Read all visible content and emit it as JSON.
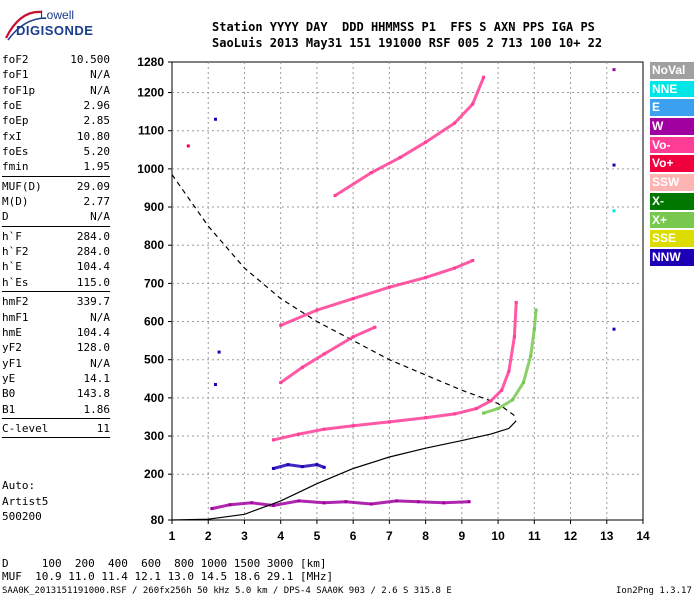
{
  "logo": {
    "line1": "Lowell",
    "line2": "DIGISONDE"
  },
  "header": {
    "line1": "Station YYYY DAY  DDD HHMMSS P1  FFS S AXN PPS IGA PS",
    "line2": "SaoLuis 2013 May31 151 191000 RSF 005 2 713 100 10+ 22"
  },
  "parameters": {
    "group1": [
      {
        "name": "foF2",
        "value": "10.500"
      },
      {
        "name": "foF1",
        "value": "N/A"
      },
      {
        "name": "foF1p",
        "value": "N/A"
      },
      {
        "name": "foE",
        "value": "2.96"
      },
      {
        "name": "foEp",
        "value": "2.85"
      },
      {
        "name": "fxI",
        "value": "10.80"
      },
      {
        "name": "foEs",
        "value": "5.20"
      },
      {
        "name": "fmin",
        "value": "1.95"
      }
    ],
    "group2": [
      {
        "name": "MUF(D)",
        "value": "29.09"
      },
      {
        "name": "M(D)",
        "value": "2.77"
      },
      {
        "name": "D",
        "value": "N/A"
      }
    ],
    "group3": [
      {
        "name": "h`F",
        "value": "284.0"
      },
      {
        "name": "h`F2",
        "value": "284.0"
      },
      {
        "name": "h`E",
        "value": "104.4"
      },
      {
        "name": "h`Es",
        "value": "115.0"
      }
    ],
    "group4": [
      {
        "name": "hmF2",
        "value": "339.7"
      },
      {
        "name": "hmF1",
        "value": "N/A"
      },
      {
        "name": "hmE",
        "value": "104.4"
      },
      {
        "name": "yF2",
        "value": "128.0"
      },
      {
        "name": "yF1",
        "value": "N/A"
      },
      {
        "name": "yE",
        "value": "14.1"
      },
      {
        "name": "B0",
        "value": "143.8"
      },
      {
        "name": "B1",
        "value": "1.86"
      }
    ],
    "group5": [
      {
        "name": "C-level",
        "value": "11"
      }
    ]
  },
  "auto": {
    "line1": "Auto:",
    "line2": "Artist5",
    "line3": "500200"
  },
  "footer": {
    "d_row": "D     100  200  400  600  800 1000 1500 3000 [km]",
    "muf_row": "MUF  10.9 11.0 11.4 12.1 13.0 14.5 18.6 29.1 [MHz]",
    "info": "SAA0K_2013151191000.RSF / 260fx256h 50 kHz 5.0 km / DPS-4 SAA0K 903 / 2.6 S 315.8 E",
    "version": "Ion2Png 1.3.17"
  },
  "legend": [
    {
      "label": "NoVal",
      "color": "#a0a0a0"
    },
    {
      "label": "NNE",
      "color": "#00e6e6"
    },
    {
      "label": "E",
      "color": "#3ca0f0"
    },
    {
      "label": "W",
      "color": "#a000a0"
    },
    {
      "label": "Vo-",
      "color": "#ff3c96"
    },
    {
      "label": "Vo+",
      "color": "#f0003c"
    },
    {
      "label": "SSW",
      "color": "#ffb4b4"
    },
    {
      "label": "X-",
      "color": "#007800"
    },
    {
      "label": "X+",
      "color": "#78c850"
    },
    {
      "label": "SSE",
      "color": "#dcdc00"
    },
    {
      "label": "NNW",
      "color": "#1e00b4"
    }
  ],
  "chart_data": {
    "type": "scatter",
    "xlim": [
      1,
      14
    ],
    "ylim": [
      80,
      1280
    ],
    "x_ticks": [
      1,
      2,
      3,
      4,
      5,
      6,
      7,
      8,
      9,
      10,
      11,
      12,
      13,
      14
    ],
    "y_ticks": [
      80,
      200,
      300,
      400,
      500,
      600,
      700,
      800,
      900,
      1000,
      1100,
      1200,
      1280
    ],
    "grid": "dashed",
    "traces": [
      {
        "name": "es_layer",
        "color": "#a000a0",
        "points": [
          [
            2.1,
            110
          ],
          [
            2.6,
            120
          ],
          [
            3.2,
            125
          ],
          [
            3.8,
            118
          ],
          [
            4.5,
            130
          ],
          [
            5.2,
            125
          ],
          [
            5.8,
            128
          ],
          [
            6.5,
            122
          ],
          [
            7.2,
            130
          ],
          [
            7.8,
            128
          ],
          [
            8.5,
            125
          ],
          [
            9.2,
            128
          ]
        ]
      },
      {
        "name": "f2_1hop",
        "color": "#ff3c96",
        "points": [
          [
            3.8,
            290
          ],
          [
            4.5,
            305
          ],
          [
            5.2,
            318
          ],
          [
            6.0,
            327
          ],
          [
            7.0,
            337
          ],
          [
            8.0,
            348
          ],
          [
            8.8,
            358
          ],
          [
            9.4,
            372
          ],
          [
            9.8,
            392
          ],
          [
            10.1,
            420
          ],
          [
            10.3,
            470
          ],
          [
            10.45,
            560
          ],
          [
            10.5,
            650
          ]
        ]
      },
      {
        "name": "f2_xmode",
        "color": "#78c850",
        "points": [
          [
            9.6,
            360
          ],
          [
            10.0,
            372
          ],
          [
            10.4,
            395
          ],
          [
            10.7,
            440
          ],
          [
            10.9,
            510
          ],
          [
            11.0,
            580
          ],
          [
            11.05,
            630
          ]
        ]
      },
      {
        "name": "f2_2hop",
        "color": "#ff3c96",
        "points": [
          [
            4.0,
            440
          ],
          [
            4.6,
            480
          ],
          [
            5.2,
            515
          ],
          [
            6.0,
            560
          ],
          [
            6.6,
            585
          ]
        ]
      },
      {
        "name": "f2_3hop",
        "color": "#ff3c96",
        "points": [
          [
            4.0,
            590
          ],
          [
            5.0,
            630
          ],
          [
            6.0,
            660
          ],
          [
            7.0,
            690
          ],
          [
            8.0,
            715
          ],
          [
            8.8,
            740
          ],
          [
            9.3,
            760
          ]
        ]
      },
      {
        "name": "f2_4hop",
        "color": "#ff3c96",
        "points": [
          [
            5.5,
            930
          ],
          [
            6.5,
            990
          ],
          [
            7.3,
            1030
          ],
          [
            8.0,
            1070
          ],
          [
            8.8,
            1120
          ],
          [
            9.3,
            1170
          ],
          [
            9.6,
            1240
          ]
        ]
      },
      {
        "name": "fl_patch",
        "color": "#1e00b4",
        "points": [
          [
            3.8,
            215
          ],
          [
            4.2,
            225
          ],
          [
            4.6,
            220
          ],
          [
            5.0,
            225
          ],
          [
            5.2,
            218
          ]
        ]
      }
    ],
    "profile": {
      "points": [
        [
          1,
          80
        ],
        [
          2,
          82
        ],
        [
          3,
          95
        ],
        [
          4,
          130
        ],
        [
          5,
          175
        ],
        [
          6,
          215
        ],
        [
          7,
          245
        ],
        [
          8,
          268
        ],
        [
          9,
          288
        ],
        [
          9.8,
          305
        ],
        [
          10.3,
          320
        ],
        [
          10.5,
          340
        ]
      ]
    },
    "muf_curve": {
      "points": [
        [
          1,
          985
        ],
        [
          2,
          850
        ],
        [
          3,
          740
        ],
        [
          4,
          660
        ],
        [
          5,
          600
        ],
        [
          6,
          550
        ],
        [
          7,
          500
        ],
        [
          8,
          460
        ],
        [
          9,
          420
        ],
        [
          10,
          385
        ],
        [
          10.5,
          350
        ]
      ]
    },
    "stray_points": [
      {
        "x": 2.2,
        "y": 1130,
        "color": "#1e00b4"
      },
      {
        "x": 1.45,
        "y": 1060,
        "color": "#f0003c"
      },
      {
        "x": 13.2,
        "y": 1260,
        "color": "#a000a0"
      },
      {
        "x": 13.2,
        "y": 1010,
        "color": "#1e00b4"
      },
      {
        "x": 13.2,
        "y": 890,
        "color": "#00e6e6"
      },
      {
        "x": 13.2,
        "y": 580,
        "color": "#1e00b4"
      },
      {
        "x": 2.3,
        "y": 520,
        "color": "#1e00b4"
      },
      {
        "x": 2.2,
        "y": 435,
        "color": "#1e00b4"
      }
    ]
  }
}
